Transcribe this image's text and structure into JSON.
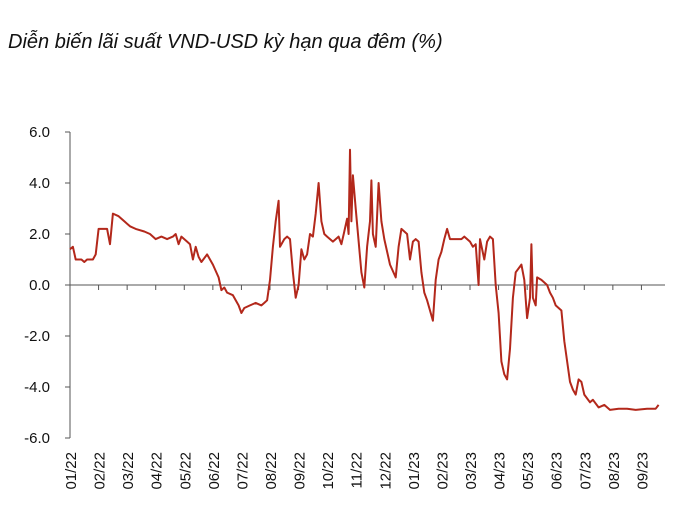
{
  "chart_data": {
    "type": "line",
    "title": "Diễn biến lãi suất VND-USD kỳ hạn qua đêm (%)",
    "x": [
      0,
      0.1,
      0.2,
      0.4,
      0.5,
      0.6,
      0.8,
      0.9,
      1.0,
      1.2,
      1.3,
      1.4,
      1.5,
      1.7,
      1.9,
      2.1,
      2.3,
      2.6,
      2.8,
      3.0,
      3.2,
      3.4,
      3.6,
      3.7,
      3.8,
      3.9,
      4.1,
      4.2,
      4.3,
      4.4,
      4.5,
      4.6,
      4.8,
      5.0,
      5.2,
      5.3,
      5.4,
      5.5,
      5.7,
      5.9,
      6.0,
      6.1,
      6.3,
      6.5,
      6.7,
      6.8,
      6.9,
      7.0,
      7.1,
      7.2,
      7.3,
      7.35,
      7.5,
      7.6,
      7.7,
      7.8,
      7.9,
      8.0,
      8.1,
      8.2,
      8.3,
      8.4,
      8.5,
      8.6,
      8.7,
      8.8,
      8.9,
      9.0,
      9.2,
      9.4,
      9.5,
      9.6,
      9.7,
      9.75,
      9.8,
      9.85,
      9.9,
      10.0,
      10.2,
      10.3,
      10.4,
      10.5,
      10.55,
      10.6,
      10.7,
      10.8,
      10.9,
      11.0,
      11.2,
      11.4,
      11.5,
      11.6,
      11.8,
      11.9,
      12.0,
      12.1,
      12.2,
      12.3,
      12.4,
      12.5,
      12.6,
      12.7,
      12.8,
      12.9,
      13.0,
      13.1,
      13.2,
      13.3,
      13.5,
      13.7,
      13.8,
      14.0,
      14.1,
      14.2,
      14.3,
      14.35,
      14.5,
      14.6,
      14.7,
      14.8,
      14.9,
      15.0,
      15.1,
      15.2,
      15.3,
      15.4,
      15.5,
      15.6,
      15.8,
      15.9,
      16.0,
      16.1,
      16.15,
      16.2,
      16.3,
      16.35,
      16.5,
      16.7,
      16.8,
      16.9,
      17.0,
      17.2,
      17.3,
      17.5,
      17.6,
      17.7,
      17.8,
      17.9,
      18.0,
      18.2,
      18.3,
      18.5,
      18.7,
      18.9,
      19.2,
      19.5,
      19.8,
      20.2,
      20.5,
      20.6
    ],
    "series": [
      {
        "name": "VND-USD",
        "color": "#b3281b",
        "values": [
          1.4,
          1.5,
          1.0,
          1.0,
          0.9,
          1.0,
          1.0,
          1.2,
          2.2,
          2.2,
          2.2,
          1.6,
          2.8,
          2.7,
          2.5,
          2.3,
          2.2,
          2.1,
          2.0,
          1.8,
          1.9,
          1.8,
          1.9,
          2.0,
          1.6,
          1.9,
          1.7,
          1.6,
          1.0,
          1.5,
          1.1,
          0.9,
          1.2,
          0.8,
          0.3,
          -0.2,
          -0.1,
          -0.3,
          -0.4,
          -0.8,
          -1.1,
          -0.9,
          -0.8,
          -0.7,
          -0.8,
          -0.7,
          -0.6,
          0.2,
          1.5,
          2.5,
          3.3,
          1.5,
          1.8,
          1.9,
          1.8,
          0.5,
          -0.5,
          0.0,
          1.4,
          1.0,
          1.2,
          2.0,
          1.9,
          2.8,
          4.0,
          2.5,
          2.0,
          1.9,
          1.7,
          1.9,
          1.6,
          2.1,
          2.6,
          2.0,
          5.3,
          2.5,
          4.3,
          3.0,
          0.5,
          -0.1,
          1.5,
          2.5,
          4.1,
          2.0,
          1.5,
          4.0,
          2.5,
          1.8,
          0.8,
          0.3,
          1.5,
          2.2,
          2.0,
          1.0,
          1.7,
          1.8,
          1.7,
          0.5,
          -0.3,
          -0.6,
          -1.0,
          -1.4,
          0.2,
          1.0,
          1.3,
          1.8,
          2.2,
          1.8,
          1.8,
          1.8,
          1.9,
          1.7,
          1.5,
          1.6,
          0.0,
          1.8,
          1.0,
          1.7,
          1.9,
          1.8,
          0.0,
          -1.1,
          -3.0,
          -3.5,
          -3.7,
          -2.5,
          -0.5,
          0.5,
          0.8,
          0.2,
          -1.3,
          -0.5,
          1.6,
          -0.5,
          -0.8,
          0.3,
          0.2,
          0.0,
          -0.3,
          -0.5,
          -0.8,
          -1.0,
          -2.2,
          -3.8,
          -4.1,
          -4.3,
          -3.7,
          -3.8,
          -4.3,
          -4.6,
          -4.5,
          -4.8,
          -4.7,
          -4.9,
          -4.85,
          -4.85,
          -4.9,
          -4.85,
          -4.85,
          -4.7
        ]
      }
    ],
    "xlim": [
      0,
      21
    ],
    "xticks": [
      {
        "value": 0,
        "label": "01/22"
      },
      {
        "value": 1,
        "label": "02/22"
      },
      {
        "value": 2,
        "label": "03/22"
      },
      {
        "value": 3,
        "label": "04/22"
      },
      {
        "value": 4,
        "label": "05/22"
      },
      {
        "value": 5,
        "label": "06/22"
      },
      {
        "value": 6,
        "label": "07/22"
      },
      {
        "value": 7,
        "label": "08/22"
      },
      {
        "value": 8,
        "label": "09/22"
      },
      {
        "value": 9,
        "label": "10/22"
      },
      {
        "value": 10,
        "label": "11/22"
      },
      {
        "value": 11,
        "label": "12/22"
      },
      {
        "value": 12,
        "label": "01/23"
      },
      {
        "value": 13,
        "label": "02/23"
      },
      {
        "value": 14,
        "label": "03/23"
      },
      {
        "value": 15,
        "label": "04/23"
      },
      {
        "value": 16,
        "label": "05/23"
      },
      {
        "value": 17,
        "label": "06/23"
      },
      {
        "value": 18,
        "label": "07/23"
      },
      {
        "value": 19,
        "label": "08/23"
      },
      {
        "value": 20,
        "label": "09/23"
      }
    ],
    "ylim": [
      -6,
      6
    ],
    "yticks": [
      {
        "value": 6,
        "label": "6.0"
      },
      {
        "value": 4,
        "label": "4.0"
      },
      {
        "value": 2,
        "label": "2.0"
      },
      {
        "value": 0,
        "label": "0.0"
      },
      {
        "value": -2,
        "label": "-2.0"
      },
      {
        "value": -4,
        "label": "-4.0"
      },
      {
        "value": -6,
        "label": "-6.0"
      }
    ]
  }
}
